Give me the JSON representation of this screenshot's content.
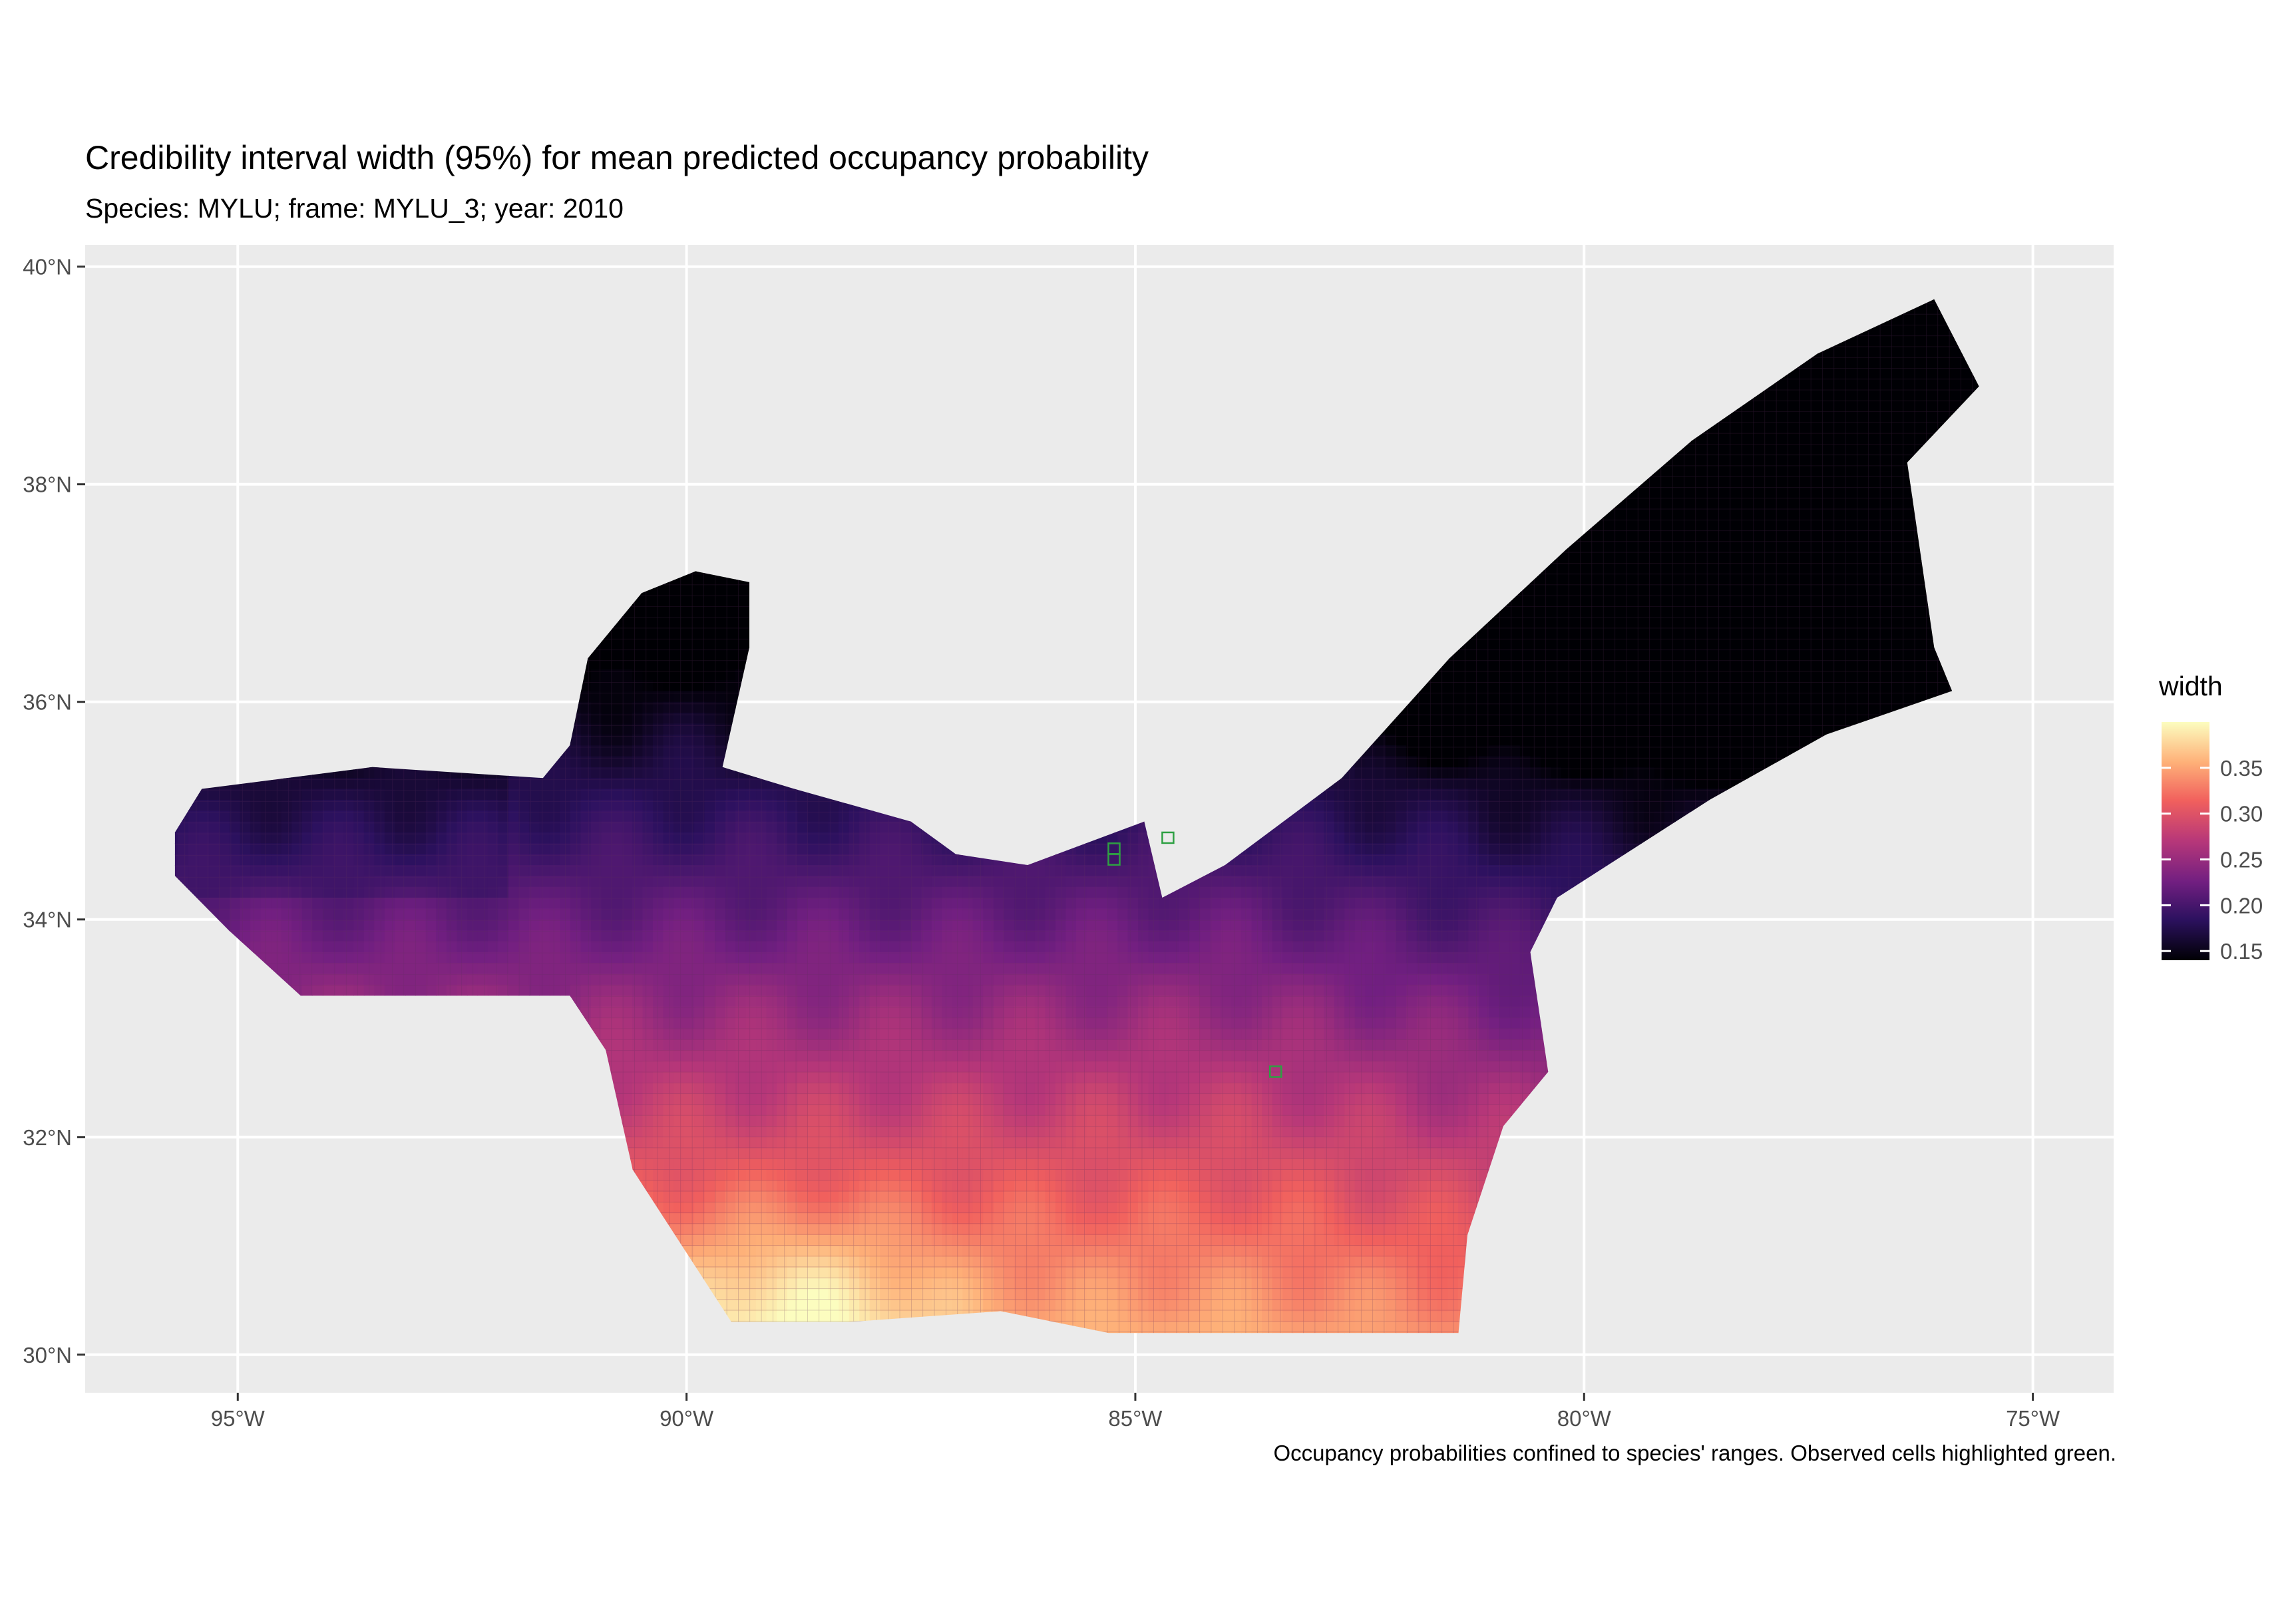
{
  "title": "Credibility interval width (95%) for mean predicted occupancy probability",
  "subtitle": "Species: MYLU; frame: MYLU_3; year: 2010",
  "caption": "Occupancy probabilities confined to species' ranges. Observed cells highlighted green.",
  "axes": {
    "x_ticks": [
      "95°W",
      "90°W",
      "85°W",
      "80°W",
      "75°W"
    ],
    "y_ticks": [
      "30°N",
      "32°N",
      "34°N",
      "36°N",
      "38°N",
      "40°N"
    ]
  },
  "legend": {
    "title": "width",
    "ticks": [
      "0.35",
      "0.30",
      "0.25",
      "0.20",
      "0.15"
    ]
  },
  "colors": {
    "panel": "#ebebeb",
    "grid": "#ffffff",
    "observed": "#2ea043",
    "scale": [
      "#000004",
      "#2c115f",
      "#721f81",
      "#b73779",
      "#f1605d",
      "#feb078",
      "#fcfdbf"
    ]
  },
  "map_data": {
    "lon_range": [
      -96.7,
      -74.1
    ],
    "lat_range": [
      29.65,
      40.2
    ],
    "value_range": [
      0.14,
      0.4
    ],
    "region_polygon_lonlat": [
      [
        -95.7,
        34.8
      ],
      [
        -95.4,
        35.2
      ],
      [
        -93.5,
        35.4
      ],
      [
        -91.6,
        35.3
      ],
      [
        -91.3,
        35.6
      ],
      [
        -91.1,
        36.4
      ],
      [
        -90.5,
        37.0
      ],
      [
        -89.9,
        37.2
      ],
      [
        -89.3,
        37.1
      ],
      [
        -89.3,
        36.5
      ],
      [
        -89.6,
        35.4
      ],
      [
        -88.8,
        35.2
      ],
      [
        -87.5,
        34.9
      ],
      [
        -87.0,
        34.6
      ],
      [
        -86.2,
        34.5
      ],
      [
        -84.9,
        34.9
      ],
      [
        -84.7,
        34.2
      ],
      [
        -84.0,
        34.5
      ],
      [
        -82.7,
        35.3
      ],
      [
        -81.5,
        36.4
      ],
      [
        -80.2,
        37.4
      ],
      [
        -78.8,
        38.4
      ],
      [
        -77.4,
        39.2
      ],
      [
        -76.1,
        39.7
      ],
      [
        -75.6,
        38.9
      ],
      [
        -76.4,
        38.2
      ],
      [
        -76.1,
        36.5
      ],
      [
        -75.9,
        36.1
      ],
      [
        -77.3,
        35.7
      ],
      [
        -78.6,
        35.1
      ],
      [
        -80.3,
        34.2
      ],
      [
        -80.6,
        33.7
      ],
      [
        -80.4,
        32.6
      ],
      [
        -80.9,
        32.1
      ],
      [
        -81.3,
        31.1
      ],
      [
        -81.4,
        30.2
      ],
      [
        -83.0,
        30.2
      ],
      [
        -85.3,
        30.2
      ],
      [
        -86.5,
        30.4
      ],
      [
        -88.2,
        30.3
      ],
      [
        -89.5,
        30.3
      ],
      [
        -90.6,
        31.7
      ],
      [
        -90.9,
        32.8
      ],
      [
        -91.3,
        33.3
      ],
      [
        -94.3,
        33.3
      ],
      [
        -95.1,
        33.9
      ],
      [
        -95.7,
        34.4
      ]
    ],
    "observed_cells_lonlat": [
      [
        -85.3,
        34.6
      ],
      [
        -85.3,
        34.7
      ],
      [
        -84.7,
        34.8
      ],
      [
        -83.5,
        32.65
      ]
    ]
  }
}
